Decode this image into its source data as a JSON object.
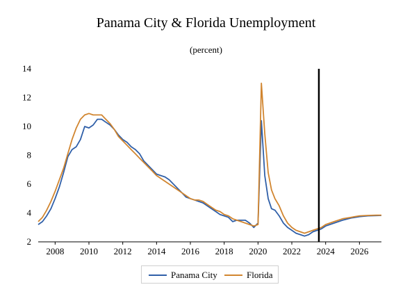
{
  "chart_data": {
    "type": "line",
    "title": "Panama City & Florida Unemployment",
    "subtitle": "(percent)",
    "xlabel": "",
    "ylabel": "",
    "xlim": [
      2007.0,
      2027.3
    ],
    "ylim": [
      2,
      14
    ],
    "x_ticks": [
      2008,
      2010,
      2012,
      2014,
      2016,
      2018,
      2020,
      2022,
      2024,
      2026
    ],
    "y_ticks": [
      2,
      4,
      6,
      8,
      10,
      12,
      14
    ],
    "grid": false,
    "legend_position": "bottom",
    "vertical_marker_x": 2023.6,
    "series": [
      {
        "name": "Panama City",
        "color": "#2f5fa8",
        "points": [
          [
            2007.0,
            3.2
          ],
          [
            2007.25,
            3.4
          ],
          [
            2007.5,
            3.8
          ],
          [
            2007.75,
            4.3
          ],
          [
            2008.0,
            5.0
          ],
          [
            2008.25,
            5.8
          ],
          [
            2008.5,
            6.8
          ],
          [
            2008.75,
            7.9
          ],
          [
            2009.0,
            8.4
          ],
          [
            2009.25,
            8.6
          ],
          [
            2009.5,
            9.1
          ],
          [
            2009.75,
            10.0
          ],
          [
            2010.0,
            9.9
          ],
          [
            2010.25,
            10.1
          ],
          [
            2010.5,
            10.5
          ],
          [
            2010.75,
            10.5
          ],
          [
            2011.0,
            10.3
          ],
          [
            2011.25,
            10.1
          ],
          [
            2011.5,
            9.8
          ],
          [
            2011.75,
            9.4
          ],
          [
            2012.0,
            9.1
          ],
          [
            2012.25,
            8.9
          ],
          [
            2012.5,
            8.6
          ],
          [
            2012.75,
            8.4
          ],
          [
            2013.0,
            8.1
          ],
          [
            2013.25,
            7.6
          ],
          [
            2013.5,
            7.3
          ],
          [
            2013.75,
            7.0
          ],
          [
            2014.0,
            6.7
          ],
          [
            2014.25,
            6.6
          ],
          [
            2014.5,
            6.5
          ],
          [
            2014.75,
            6.3
          ],
          [
            2015.0,
            6.0
          ],
          [
            2015.25,
            5.7
          ],
          [
            2015.5,
            5.4
          ],
          [
            2015.75,
            5.1
          ],
          [
            2016.0,
            5.0
          ],
          [
            2016.25,
            4.9
          ],
          [
            2016.5,
            4.8
          ],
          [
            2016.75,
            4.7
          ],
          [
            2017.0,
            4.5
          ],
          [
            2017.25,
            4.3
          ],
          [
            2017.5,
            4.1
          ],
          [
            2017.75,
            3.9
          ],
          [
            2018.0,
            3.8
          ],
          [
            2018.25,
            3.7
          ],
          [
            2018.5,
            3.4
          ],
          [
            2018.75,
            3.5
          ],
          [
            2019.0,
            3.5
          ],
          [
            2019.25,
            3.5
          ],
          [
            2019.5,
            3.3
          ],
          [
            2019.75,
            3.0
          ],
          [
            2020.0,
            3.3
          ],
          [
            2020.2,
            10.4
          ],
          [
            2020.4,
            6.6
          ],
          [
            2020.6,
            5.0
          ],
          [
            2020.8,
            4.3
          ],
          [
            2021.0,
            4.2
          ],
          [
            2021.25,
            3.8
          ],
          [
            2021.5,
            3.3
          ],
          [
            2021.75,
            3.0
          ],
          [
            2022.0,
            2.8
          ],
          [
            2022.25,
            2.6
          ],
          [
            2022.5,
            2.5
          ],
          [
            2022.75,
            2.4
          ],
          [
            2023.0,
            2.5
          ],
          [
            2023.25,
            2.7
          ],
          [
            2023.5,
            2.8
          ],
          [
            2023.75,
            2.9
          ],
          [
            2024.0,
            3.1
          ],
          [
            2024.5,
            3.3
          ],
          [
            2025.0,
            3.5
          ],
          [
            2025.5,
            3.65
          ],
          [
            2026.0,
            3.75
          ],
          [
            2026.5,
            3.8
          ],
          [
            2027.0,
            3.82
          ],
          [
            2027.3,
            3.83
          ]
        ]
      },
      {
        "name": "Florida",
        "color": "#d1852f",
        "points": [
          [
            2007.0,
            3.4
          ],
          [
            2007.25,
            3.7
          ],
          [
            2007.5,
            4.2
          ],
          [
            2007.75,
            4.8
          ],
          [
            2008.0,
            5.5
          ],
          [
            2008.25,
            6.3
          ],
          [
            2008.5,
            7.1
          ],
          [
            2008.75,
            8.1
          ],
          [
            2009.0,
            9.1
          ],
          [
            2009.25,
            9.9
          ],
          [
            2009.5,
            10.5
          ],
          [
            2009.75,
            10.8
          ],
          [
            2010.0,
            10.9
          ],
          [
            2010.25,
            10.8
          ],
          [
            2010.5,
            10.8
          ],
          [
            2010.75,
            10.8
          ],
          [
            2011.0,
            10.5
          ],
          [
            2011.25,
            10.2
          ],
          [
            2011.5,
            9.8
          ],
          [
            2011.75,
            9.3
          ],
          [
            2012.0,
            9.0
          ],
          [
            2012.25,
            8.7
          ],
          [
            2012.5,
            8.4
          ],
          [
            2012.75,
            8.1
          ],
          [
            2013.0,
            7.8
          ],
          [
            2013.25,
            7.5
          ],
          [
            2013.5,
            7.2
          ],
          [
            2013.75,
            6.9
          ],
          [
            2014.0,
            6.6
          ],
          [
            2014.25,
            6.4
          ],
          [
            2014.5,
            6.2
          ],
          [
            2014.75,
            6.0
          ],
          [
            2015.0,
            5.8
          ],
          [
            2015.25,
            5.6
          ],
          [
            2015.5,
            5.4
          ],
          [
            2015.75,
            5.2
          ],
          [
            2016.0,
            5.0
          ],
          [
            2016.25,
            4.9
          ],
          [
            2016.5,
            4.9
          ],
          [
            2016.75,
            4.8
          ],
          [
            2017.0,
            4.6
          ],
          [
            2017.25,
            4.4
          ],
          [
            2017.5,
            4.2
          ],
          [
            2017.75,
            4.1
          ],
          [
            2018.0,
            3.9
          ],
          [
            2018.25,
            3.8
          ],
          [
            2018.5,
            3.6
          ],
          [
            2018.75,
            3.5
          ],
          [
            2019.0,
            3.4
          ],
          [
            2019.25,
            3.3
          ],
          [
            2019.5,
            3.2
          ],
          [
            2019.75,
            3.1
          ],
          [
            2020.0,
            3.2
          ],
          [
            2020.2,
            13.0
          ],
          [
            2020.4,
            9.5
          ],
          [
            2020.6,
            6.8
          ],
          [
            2020.8,
            5.6
          ],
          [
            2021.0,
            5.0
          ],
          [
            2021.25,
            4.5
          ],
          [
            2021.5,
            3.8
          ],
          [
            2021.75,
            3.3
          ],
          [
            2022.0,
            3.0
          ],
          [
            2022.25,
            2.8
          ],
          [
            2022.5,
            2.7
          ],
          [
            2022.75,
            2.6
          ],
          [
            2023.0,
            2.7
          ],
          [
            2023.25,
            2.8
          ],
          [
            2023.5,
            2.9
          ],
          [
            2023.75,
            3.0
          ],
          [
            2024.0,
            3.2
          ],
          [
            2024.5,
            3.4
          ],
          [
            2025.0,
            3.6
          ],
          [
            2025.5,
            3.7
          ],
          [
            2026.0,
            3.8
          ],
          [
            2026.5,
            3.83
          ],
          [
            2027.0,
            3.85
          ],
          [
            2027.3,
            3.85
          ]
        ]
      }
    ]
  }
}
